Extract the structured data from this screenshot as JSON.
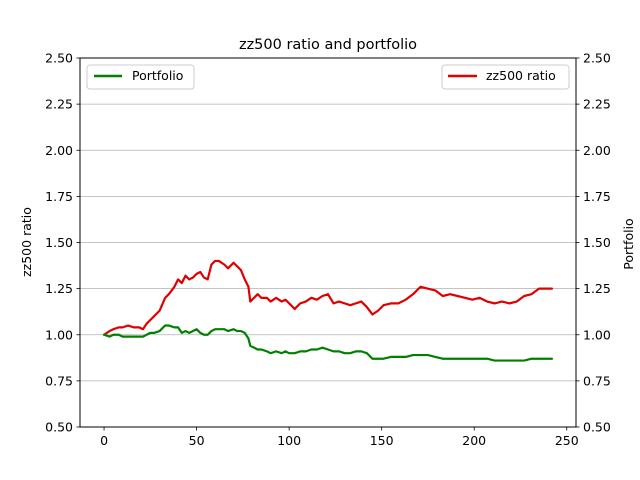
{
  "chart_data": {
    "type": "line",
    "title": "zz500 ratio and portfolio",
    "xlim": [
      -13,
      255
    ],
    "x_ticks": [
      0,
      50,
      100,
      150,
      200,
      250
    ],
    "y_left": {
      "label": "zz500 ratio",
      "ylim": [
        0.5,
        2.5
      ],
      "ticks": [
        "0.50",
        "0.75",
        "1.00",
        "1.25",
        "1.50",
        "1.75",
        "2.00",
        "2.25",
        "2.50"
      ]
    },
    "y_right": {
      "label": "Portfolio",
      "ylim": [
        0.5,
        2.5
      ],
      "ticks": [
        "0.50",
        "0.75",
        "1.00",
        "1.25",
        "1.50",
        "1.75",
        "2.00",
        "2.25",
        "2.50"
      ]
    },
    "grid": "horizontal",
    "legend": [
      {
        "name": "Portfolio",
        "placement": "upper-left",
        "color": "#008000"
      },
      {
        "name": "zz500 ratio",
        "placement": "upper-right",
        "color": "#e00000"
      }
    ],
    "series": [
      {
        "name": "zz500 ratio",
        "axis": "left",
        "color": "#e00000",
        "x": [
          0,
          3,
          5,
          8,
          10,
          13,
          16,
          19,
          21,
          23,
          25,
          27,
          30,
          33,
          35,
          38,
          40,
          42,
          44,
          46,
          48,
          50,
          52,
          54,
          56,
          58,
          60,
          62,
          65,
          67,
          70,
          72,
          74,
          76,
          78,
          79,
          81,
          83,
          85,
          88,
          90,
          93,
          96,
          98,
          100,
          103,
          106,
          109,
          112,
          115,
          118,
          121,
          124,
          127,
          130,
          133,
          136,
          139,
          142,
          145,
          148,
          151,
          155,
          159,
          163,
          167,
          171,
          175,
          179,
          183,
          187,
          191,
          195,
          199,
          203,
          207,
          211,
          215,
          219,
          223,
          227,
          231,
          235,
          239,
          242
        ],
        "y": [
          1.0,
          1.02,
          1.03,
          1.04,
          1.04,
          1.05,
          1.04,
          1.04,
          1.03,
          1.06,
          1.08,
          1.1,
          1.13,
          1.2,
          1.22,
          1.26,
          1.3,
          1.28,
          1.32,
          1.3,
          1.31,
          1.33,
          1.34,
          1.31,
          1.3,
          1.38,
          1.4,
          1.4,
          1.38,
          1.36,
          1.39,
          1.37,
          1.35,
          1.3,
          1.26,
          1.18,
          1.2,
          1.22,
          1.2,
          1.2,
          1.18,
          1.2,
          1.18,
          1.19,
          1.17,
          1.14,
          1.17,
          1.18,
          1.2,
          1.19,
          1.21,
          1.22,
          1.17,
          1.18,
          1.17,
          1.16,
          1.17,
          1.18,
          1.15,
          1.11,
          1.13,
          1.16,
          1.17,
          1.17,
          1.19,
          1.22,
          1.26,
          1.25,
          1.24,
          1.21,
          1.22,
          1.21,
          1.2,
          1.19,
          1.2,
          1.18,
          1.17,
          1.18,
          1.17,
          1.18,
          1.21,
          1.22,
          1.25,
          1.25,
          1.25
        ]
      },
      {
        "name": "Portfolio",
        "axis": "right",
        "color": "#008000",
        "x": [
          0,
          3,
          5,
          8,
          10,
          13,
          16,
          19,
          21,
          23,
          25,
          27,
          30,
          33,
          35,
          38,
          40,
          42,
          44,
          46,
          48,
          50,
          52,
          54,
          56,
          58,
          60,
          62,
          65,
          67,
          70,
          72,
          74,
          76,
          78,
          79,
          81,
          83,
          85,
          88,
          90,
          93,
          96,
          98,
          100,
          103,
          106,
          109,
          112,
          115,
          118,
          121,
          124,
          127,
          130,
          133,
          136,
          139,
          142,
          145,
          148,
          151,
          155,
          159,
          163,
          167,
          171,
          175,
          179,
          183,
          187,
          191,
          195,
          199,
          203,
          207,
          211,
          215,
          219,
          223,
          227,
          231,
          235,
          239,
          242
        ],
        "y": [
          1.0,
          0.99,
          1.0,
          1.0,
          0.99,
          0.99,
          0.99,
          0.99,
          0.99,
          1.0,
          1.01,
          1.01,
          1.02,
          1.05,
          1.05,
          1.04,
          1.04,
          1.01,
          1.02,
          1.01,
          1.02,
          1.03,
          1.01,
          1.0,
          1.0,
          1.02,
          1.03,
          1.03,
          1.03,
          1.02,
          1.03,
          1.02,
          1.02,
          1.01,
          0.98,
          0.94,
          0.93,
          0.92,
          0.92,
          0.91,
          0.9,
          0.91,
          0.9,
          0.91,
          0.9,
          0.9,
          0.91,
          0.91,
          0.92,
          0.92,
          0.93,
          0.92,
          0.91,
          0.91,
          0.9,
          0.9,
          0.91,
          0.91,
          0.9,
          0.87,
          0.87,
          0.87,
          0.88,
          0.88,
          0.88,
          0.89,
          0.89,
          0.89,
          0.88,
          0.87,
          0.87,
          0.87,
          0.87,
          0.87,
          0.87,
          0.87,
          0.86,
          0.86,
          0.86,
          0.86,
          0.86,
          0.87,
          0.87,
          0.87,
          0.87
        ]
      }
    ]
  }
}
